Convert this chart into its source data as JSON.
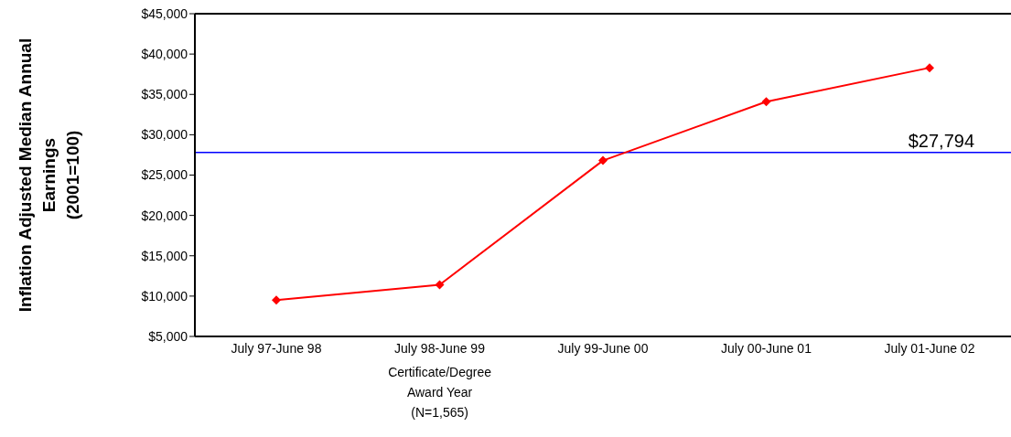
{
  "chart_data": {
    "type": "line",
    "categories": [
      "July 97-June 98",
      "July 98-June 99",
      "July 99-June 00",
      "July 00-June 01",
      "July 01-June 02"
    ],
    "series": [
      {
        "color": "#ff0000",
        "values": [
          9500,
          11400,
          26800,
          34100,
          38300
        ]
      }
    ],
    "xlabel": "Certificate/Degree\nAward Year\n(N=1,565)",
    "ylabel": "Inflation Adjusted Median Annual\nEarnings\n(2001=100)",
    "ylim": [
      5000,
      45000
    ],
    "yticks": [
      {
        "value": 5000,
        "label": "$5,000"
      },
      {
        "value": 10000,
        "label": "$10,000"
      },
      {
        "value": 15000,
        "label": "$15,000"
      },
      {
        "value": 20000,
        "label": "$20,000"
      },
      {
        "value": 25000,
        "label": "$25,000"
      },
      {
        "value": 30000,
        "label": "$30,000"
      },
      {
        "value": 35000,
        "label": "$35,000"
      },
      {
        "value": 40000,
        "label": "$40,000"
      },
      {
        "value": 45000,
        "label": "$45,000"
      }
    ],
    "ref_lines": [
      {
        "axis": "y",
        "value": 27794,
        "label": "$27,794",
        "color": "#0000ff"
      }
    ],
    "grid": false,
    "legend": false,
    "marker": "diamond",
    "line_style": "solid"
  }
}
